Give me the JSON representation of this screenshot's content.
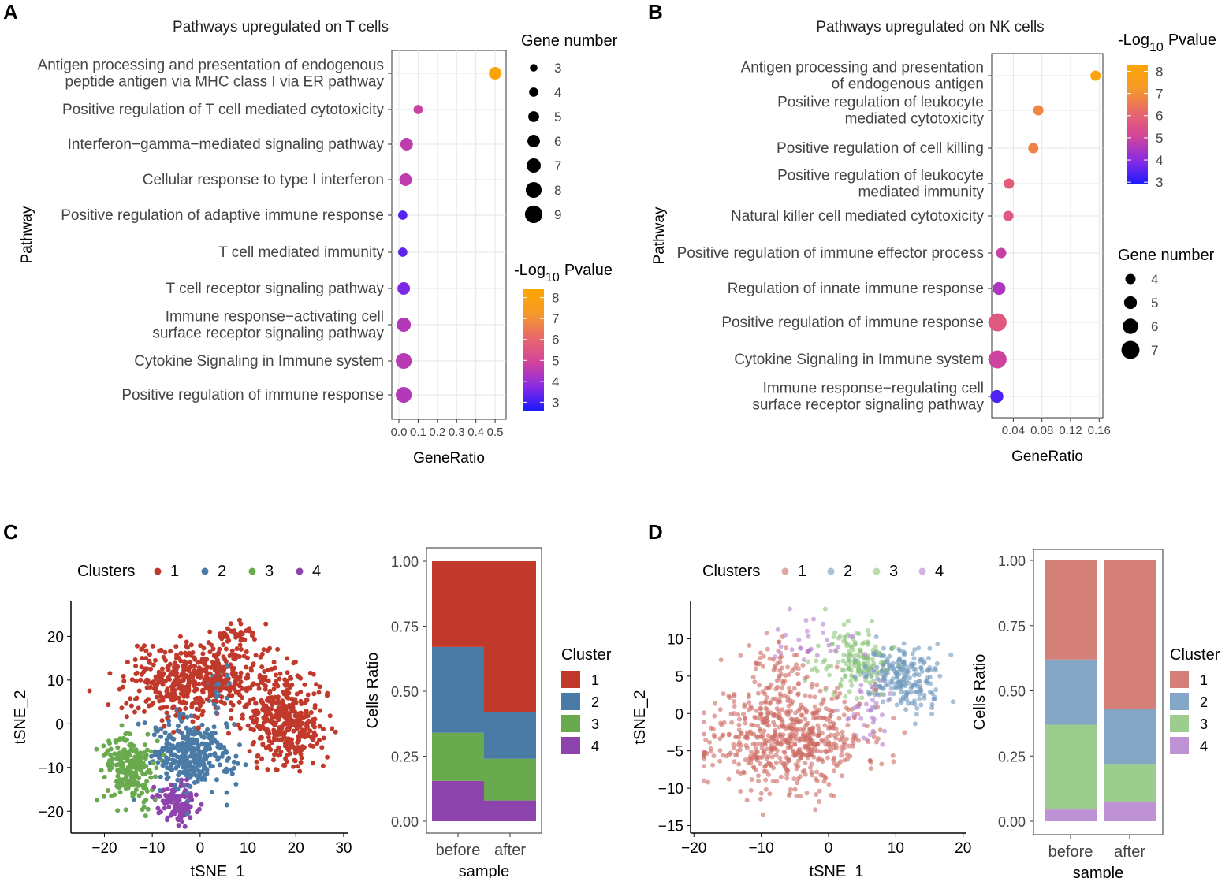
{
  "panels": {
    "A": {
      "letter": "A",
      "chart_data": {
        "type": "dot",
        "title": "Pathways upregulated on T cells",
        "xlabel": "GeneRatio",
        "ylabel": "Pathway",
        "xlim": [
          0,
          0.52
        ],
        "xticks": [
          "0.0",
          "0.1",
          "0.2",
          "0.3",
          "0.4",
          "0.5"
        ],
        "xtick_values": [
          0,
          0.1,
          0.2,
          0.3,
          0.4,
          0.5
        ],
        "categories": [
          [
            "Antigen processing and presentation of endogenous",
            "peptide antigen via MHC class I via ER pathway"
          ],
          [
            "Positive regulation of T cell mediated cytotoxicity"
          ],
          [
            "Interferon−gamma−mediated signaling pathway"
          ],
          [
            "Cellular response to type I interferon"
          ],
          [
            "Positive regulation of adaptive immune response"
          ],
          [
            "T cell mediated immunity"
          ],
          [
            "T cell receptor signaling pathway"
          ],
          [
            "Immune response−activating cell",
            "surface receptor signaling pathway"
          ],
          [
            "Cytokine Signaling in Immune system"
          ],
          [
            "Positive regulation of immune response"
          ]
        ],
        "gene_ratio": [
          0.5,
          0.1,
          0.04,
          0.035,
          0.02,
          0.02,
          0.025,
          0.025,
          0.025,
          0.025
        ],
        "gene_number": [
          6,
          4,
          6,
          6,
          4,
          4,
          6,
          7,
          8,
          8
        ],
        "neg_log10_pvalue": [
          8.1,
          4.8,
          4.6,
          4.6,
          3.2,
          3.3,
          3.6,
          4.4,
          4.5,
          4.4
        ],
        "size_legend": {
          "title": "Gene number",
          "values": [
            3,
            4,
            5,
            6,
            7,
            8,
            9
          ]
        },
        "color_legend": {
          "title_prefix": "-Log",
          "title_sub": "10",
          "title_suffix": "Pvalue",
          "ticks": [
            8,
            7,
            6,
            5,
            4,
            3
          ],
          "range": [
            2.6,
            8.4
          ]
        }
      }
    },
    "B": {
      "letter": "B",
      "chart_data": {
        "type": "dot",
        "title": "Pathways upregulated on NK cells",
        "xlabel": "GeneRatio",
        "ylabel": "Pathway",
        "xlim": [
          0.012,
          0.163
        ],
        "xticks": [
          "0.04",
          "0.08",
          "0.12",
          "0.16"
        ],
        "xtick_values": [
          0.04,
          0.08,
          0.12,
          0.16
        ],
        "categories": [
          [
            "Antigen processing and presentation",
            "of endogenous antigen"
          ],
          [
            "Positive regulation of leukocyte",
            "mediated cytotoxicity"
          ],
          [
            "Positive regulation of cell killing"
          ],
          [
            "Positive regulation of leukocyte",
            "mediated immunity"
          ],
          [
            "Natural killer cell mediated cytotoxicity"
          ],
          [
            "Positive regulation of immune effector process"
          ],
          [
            "Regulation of innate immune response"
          ],
          [
            "Positive regulation of immune response"
          ],
          [
            "Cytokine Signaling in Immune system"
          ],
          [
            "Immune response−regulating cell",
            "surface receptor signaling pathway"
          ]
        ],
        "gene_ratio": [
          0.155,
          0.075,
          0.068,
          0.034,
          0.033,
          0.023,
          0.02,
          0.018,
          0.018,
          0.017
        ],
        "gene_number": [
          4,
          4,
          4,
          4,
          4,
          4,
          5,
          7,
          7,
          5
        ],
        "neg_log10_pvalue": [
          8.0,
          6.8,
          6.7,
          5.8,
          5.7,
          4.9,
          4.5,
          5.7,
          5.0,
          3.4
        ],
        "size_legend": {
          "title": "Gene number",
          "values": [
            4,
            5,
            6,
            7
          ]
        },
        "color_legend": {
          "title_prefix": "-Log",
          "title_sub": "10",
          "title_suffix": "Pvalue",
          "ticks": [
            8,
            7,
            6,
            5,
            4,
            3
          ],
          "range": [
            2.9,
            8.3
          ]
        }
      }
    },
    "C": {
      "letter": "C",
      "scatter": {
        "type": "scatter",
        "xlabel": "tSNE_1",
        "ylabel": "tSNE_2",
        "xlim": [
          -27,
          31
        ],
        "ylim": [
          -25,
          28
        ],
        "xticks": [
          -20,
          -10,
          0,
          10,
          20,
          30
        ],
        "yticks": [
          -20,
          -10,
          0,
          10,
          20
        ],
        "legend_title": "Clusters",
        "cluster_labels": [
          "1",
          "2",
          "3",
          "4"
        ],
        "clusters": [
          {
            "name": "1",
            "blobs": [
              [
                0,
                10,
                11,
                6,
                520
              ],
              [
                18,
                0,
                6,
                7,
                360
              ],
              [
                8,
                20,
                3,
                3,
                40
              ]
            ]
          },
          {
            "name": "2",
            "blobs": [
              [
                -2,
                -7,
                6,
                6,
                330
              ],
              [
                4,
                8,
                2,
                3,
                30
              ]
            ]
          },
          {
            "name": "3",
            "blobs": [
              [
                -15,
                -10,
                4,
                5,
                220
              ]
            ]
          },
          {
            "name": "4",
            "blobs": [
              [
                -5,
                -18,
                3,
                3,
                140
              ]
            ]
          }
        ],
        "alpha": 1.0,
        "seed": 7
      },
      "bar": {
        "type": "bar",
        "xlabel": "sample",
        "ylabel": "Cells Ratio",
        "categories": [
          "before",
          "after"
        ],
        "yticks": [
          "0.00",
          "0.25",
          "0.50",
          "0.75",
          "1.00"
        ],
        "series": [
          {
            "name": "1",
            "values": [
              0.33,
              0.58
            ]
          },
          {
            "name": "2",
            "values": [
              0.33,
              0.18
            ]
          },
          {
            "name": "3",
            "values": [
              0.185,
              0.16
            ]
          },
          {
            "name": "4",
            "values": [
              0.155,
              0.08
            ]
          }
        ],
        "legend_title": "Cluster"
      },
      "colors": [
        "#c0392b",
        "#4a7aa6",
        "#6aaa4e",
        "#8e44ad"
      ]
    },
    "D": {
      "letter": "D",
      "scatter": {
        "type": "scatter",
        "xlabel": "tSNE_1",
        "ylabel": "tSNE_2",
        "xlim": [
          -20.5,
          20.5
        ],
        "ylim": [
          -16,
          15
        ],
        "xticks": [
          -20,
          -10,
          0,
          10,
          20
        ],
        "yticks": [
          -15,
          -10,
          -5,
          0,
          5,
          10
        ],
        "legend_title": "Clusters",
        "cluster_labels": [
          "1",
          "2",
          "3",
          "4"
        ],
        "clusters": [
          {
            "name": "1",
            "blobs": [
              [
                -6,
                -3,
                8,
                5,
                620
              ],
              [
                -8,
                6,
                3,
                3,
                60
              ]
            ]
          },
          {
            "name": "2",
            "blobs": [
              [
                11,
                5,
                4,
                3,
                220
              ]
            ]
          },
          {
            "name": "3",
            "blobs": [
              [
                4,
                7,
                4,
                3,
                150
              ]
            ]
          },
          {
            "name": "4",
            "blobs": [
              [
                6,
                0,
                3,
                3,
                40
              ],
              [
                -3,
                9,
                4,
                3,
                30
              ]
            ]
          }
        ],
        "alpha": 0.6,
        "seed": 11
      },
      "bar": {
        "type": "bar",
        "xlabel": "sample",
        "ylabel": "Cells Ratio",
        "categories": [
          "before",
          "after"
        ],
        "yticks": [
          "0.00",
          "0.25",
          "0.50",
          "0.75",
          "1.00"
        ],
        "series": [
          {
            "name": "1",
            "values": [
              0.38,
              0.57
            ]
          },
          {
            "name": "2",
            "values": [
              0.25,
              0.21
            ]
          },
          {
            "name": "3",
            "values": [
              0.325,
              0.145
            ]
          },
          {
            "name": "4",
            "values": [
              0.045,
              0.075
            ]
          }
        ],
        "legend_title": "Cluster"
      },
      "colors": [
        "#cd6a62",
        "#6e97bd",
        "#8cc47a",
        "#b47fcf"
      ]
    }
  }
}
